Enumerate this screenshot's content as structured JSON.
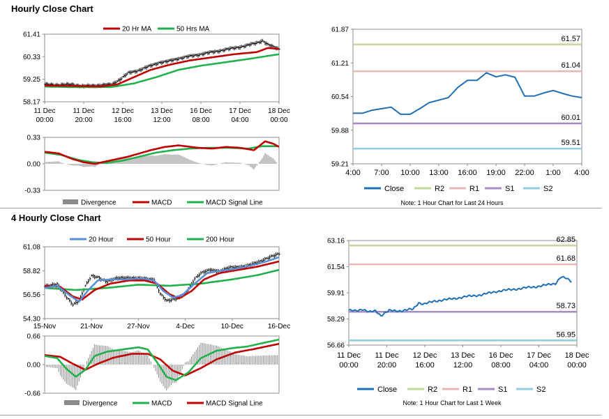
{
  "sections": {
    "hourly_title": "Hourly Close Chart",
    "four_hourly_title": "4 Hourly Close Chart"
  },
  "colors": {
    "ma_red": "#c00000",
    "ma_green": "#22b14c",
    "ma_blue": "#5b8fd4",
    "bar_black": "#000000",
    "divergence_gray": "#8a8a8a",
    "close_blue": "#1f6fb4",
    "r2": "#c3d69b",
    "r1": "#e6b9b8",
    "s1": "#a58dc2",
    "s2": "#93cddd"
  },
  "chart_data": [
    {
      "id": "hourly_price",
      "type": "ohlc",
      "legend": [
        "20 Hr MA",
        "50 Hrs MA"
      ],
      "yticks": [
        "61.41",
        "60.33",
        "59.25",
        "58.17"
      ],
      "ylim": [
        58.17,
        61.41
      ],
      "xticks": [
        [
          "11 Dec",
          "00:00"
        ],
        [
          "11 Dec",
          "20:00"
        ],
        [
          "12 Dec",
          "16:00"
        ],
        [
          "13 Dec",
          "12:00"
        ],
        [
          "16 Dec",
          "08:00"
        ],
        [
          "17 Dec",
          "04:00"
        ],
        [
          "18 Dec",
          "00:00"
        ]
      ],
      "xrange": [
        0,
        168
      ],
      "close_anchors": [
        [
          0,
          59.0
        ],
        [
          10,
          58.98
        ],
        [
          20,
          59.0
        ],
        [
          24,
          58.95
        ],
        [
          28,
          58.92
        ],
        [
          36,
          58.95
        ],
        [
          48,
          59.0
        ],
        [
          54,
          59.25
        ],
        [
          60,
          59.55
        ],
        [
          66,
          59.65
        ],
        [
          72,
          59.8
        ],
        [
          82,
          60.05
        ],
        [
          88,
          60.1
        ],
        [
          96,
          60.25
        ],
        [
          104,
          60.35
        ],
        [
          112,
          60.45
        ],
        [
          120,
          60.55
        ],
        [
          128,
          60.65
        ],
        [
          136,
          60.75
        ],
        [
          144,
          60.85
        ],
        [
          152,
          61.0
        ],
        [
          156,
          61.1
        ],
        [
          160,
          60.9
        ],
        [
          168,
          60.7
        ]
      ],
      "ma20_anchors": [
        [
          0,
          58.95
        ],
        [
          20,
          58.93
        ],
        [
          40,
          58.9
        ],
        [
          52,
          59.0
        ],
        [
          64,
          59.35
        ],
        [
          76,
          59.7
        ],
        [
          90,
          59.95
        ],
        [
          104,
          60.15
        ],
        [
          120,
          60.3
        ],
        [
          136,
          60.45
        ],
        [
          152,
          60.55
        ],
        [
          160,
          60.75
        ],
        [
          168,
          60.7
        ]
      ],
      "ma50_anchors": [
        [
          0,
          58.9
        ],
        [
          24,
          58.87
        ],
        [
          48,
          58.88
        ],
        [
          64,
          59.05
        ],
        [
          80,
          59.35
        ],
        [
          96,
          59.7
        ],
        [
          112,
          59.9
        ],
        [
          128,
          60.05
        ],
        [
          144,
          60.2
        ],
        [
          168,
          60.45
        ]
      ]
    },
    {
      "id": "hourly_macd",
      "type": "macd",
      "legend": [
        "Divergence",
        "MACD",
        "MACD Signal Line"
      ],
      "yticks": [
        "0.33",
        "0.00",
        "-0.33"
      ],
      "ylim": [
        -0.33,
        0.33
      ],
      "xrange": [
        0,
        168
      ],
      "macd_anchors": [
        [
          0,
          0.15
        ],
        [
          10,
          0.13
        ],
        [
          20,
          0.06
        ],
        [
          28,
          0.02
        ],
        [
          36,
          0.0
        ],
        [
          44,
          0.03
        ],
        [
          52,
          0.06
        ],
        [
          60,
          0.09
        ],
        [
          68,
          0.13
        ],
        [
          76,
          0.17
        ],
        [
          86,
          0.21
        ],
        [
          96,
          0.23
        ],
        [
          110,
          0.2
        ],
        [
          120,
          0.19
        ],
        [
          130,
          0.21
        ],
        [
          140,
          0.2
        ],
        [
          150,
          0.17
        ],
        [
          158,
          0.28
        ],
        [
          164,
          0.25
        ],
        [
          168,
          0.21
        ]
      ],
      "signal_anchors": [
        [
          0,
          0.14
        ],
        [
          12,
          0.11
        ],
        [
          24,
          0.05
        ],
        [
          34,
          0.02
        ],
        [
          44,
          0.01
        ],
        [
          56,
          0.04
        ],
        [
          68,
          0.09
        ],
        [
          80,
          0.14
        ],
        [
          92,
          0.17
        ],
        [
          104,
          0.19
        ],
        [
          118,
          0.2
        ],
        [
          132,
          0.2
        ],
        [
          146,
          0.19
        ],
        [
          156,
          0.22
        ],
        [
          168,
          0.22
        ]
      ]
    },
    {
      "id": "hourly_levels",
      "type": "line",
      "legend": [
        "Close",
        "R2",
        "R1",
        "S1",
        "S2"
      ],
      "note": "Note: 1 Hour Chart for Last 24 Hours",
      "yticks": [
        "61.87",
        "61.21",
        "60.54",
        "59.88",
        "59.21"
      ],
      "ylim": [
        59.21,
        61.87
      ],
      "xticks": [
        "4:00",
        "7:00",
        "10:00",
        "13:00",
        "16:00",
        "19:00",
        "22:00",
        "1:00",
        "4:00"
      ],
      "levels": [
        {
          "name": "R2",
          "value": 61.57,
          "label": "61.57"
        },
        {
          "name": "R1",
          "value": 61.04,
          "label": "61.04"
        },
        {
          "name": "S1",
          "value": 60.01,
          "label": "60.01"
        },
        {
          "name": "S2",
          "value": 59.51,
          "label": "59.51"
        }
      ],
      "close": [
        60.21,
        60.21,
        60.27,
        60.3,
        60.33,
        60.19,
        60.19,
        60.3,
        60.42,
        60.47,
        60.52,
        60.72,
        60.86,
        60.86,
        61.01,
        60.93,
        60.97,
        60.92,
        60.55,
        60.55,
        60.61,
        60.66,
        60.6,
        60.55,
        60.52
      ]
    },
    {
      "id": "four_hourly_price",
      "type": "ohlc",
      "legend": [
        "20 Hour",
        "50 Hour",
        "200 Hour"
      ],
      "yticks": [
        "61.08",
        "58.82",
        "56.56",
        "54.30"
      ],
      "ylim": [
        54.3,
        61.08
      ],
      "xticks": [
        "15-Nov",
        "21-Nov",
        "27-Nov",
        "4-Dec",
        "10-Dec",
        "16-Dec"
      ],
      "xrange": [
        0,
        150
      ],
      "close_anchors": [
        [
          0,
          57.3
        ],
        [
          8,
          57.6
        ],
        [
          14,
          56.3
        ],
        [
          18,
          55.6
        ],
        [
          22,
          56.0
        ],
        [
          26,
          57.4
        ],
        [
          30,
          58.3
        ],
        [
          34,
          58.2
        ],
        [
          40,
          57.8
        ],
        [
          46,
          58.1
        ],
        [
          52,
          58.2
        ],
        [
          58,
          58.1
        ],
        [
          64,
          58.1
        ],
        [
          70,
          58.0
        ],
        [
          74,
          56.6
        ],
        [
          78,
          56.0
        ],
        [
          84,
          56.2
        ],
        [
          90,
          56.6
        ],
        [
          96,
          58.1
        ],
        [
          100,
          58.6
        ],
        [
          106,
          58.9
        ],
        [
          112,
          58.8
        ],
        [
          118,
          59.1
        ],
        [
          124,
          59.2
        ],
        [
          130,
          59.3
        ],
        [
          136,
          59.6
        ],
        [
          142,
          60.0
        ],
        [
          150,
          60.4
        ]
      ],
      "ma20_anchors": [
        [
          0,
          57.2
        ],
        [
          8,
          57.4
        ],
        [
          16,
          56.5
        ],
        [
          22,
          55.9
        ],
        [
          28,
          57.0
        ],
        [
          34,
          57.9
        ],
        [
          42,
          58.0
        ],
        [
          52,
          58.0
        ],
        [
          62,
          58.1
        ],
        [
          70,
          57.9
        ],
        [
          76,
          56.9
        ],
        [
          82,
          56.3
        ],
        [
          88,
          56.5
        ],
        [
          96,
          57.6
        ],
        [
          104,
          58.6
        ],
        [
          112,
          58.8
        ],
        [
          122,
          59.0
        ],
        [
          132,
          59.3
        ],
        [
          142,
          59.7
        ],
        [
          150,
          60.1
        ]
      ],
      "ma50_anchors": [
        [
          0,
          57.4
        ],
        [
          10,
          57.3
        ],
        [
          18,
          56.4
        ],
        [
          24,
          56.1
        ],
        [
          32,
          57.0
        ],
        [
          42,
          57.6
        ],
        [
          54,
          57.9
        ],
        [
          64,
          57.9
        ],
        [
          72,
          57.6
        ],
        [
          80,
          56.6
        ],
        [
          86,
          56.2
        ],
        [
          94,
          56.9
        ],
        [
          102,
          58.0
        ],
        [
          112,
          58.6
        ],
        [
          124,
          58.9
        ],
        [
          136,
          59.2
        ],
        [
          150,
          59.7
        ]
      ],
      "ma200_anchors": [
        [
          0,
          57.2
        ],
        [
          20,
          57.0
        ],
        [
          40,
          57.2
        ],
        [
          60,
          57.5
        ],
        [
          80,
          57.4
        ],
        [
          100,
          57.6
        ],
        [
          120,
          58.0
        ],
        [
          136,
          58.4
        ],
        [
          150,
          58.9
        ]
      ]
    },
    {
      "id": "four_hourly_macd",
      "type": "macd",
      "legend": [
        "Divergence",
        "MACD",
        "MACD Signal Line"
      ],
      "yticks": [
        "0.66",
        "0.00",
        "-0.66"
      ],
      "ylim": [
        -0.66,
        0.66
      ],
      "xrange": [
        0,
        150
      ],
      "macd_anchors": [
        [
          0,
          0.2
        ],
        [
          8,
          0.15
        ],
        [
          14,
          -0.1
        ],
        [
          20,
          -0.28
        ],
        [
          26,
          -0.12
        ],
        [
          32,
          0.2
        ],
        [
          40,
          0.3
        ],
        [
          50,
          0.35
        ],
        [
          60,
          0.4
        ],
        [
          66,
          0.35
        ],
        [
          72,
          0.05
        ],
        [
          78,
          -0.28
        ],
        [
          84,
          -0.36
        ],
        [
          92,
          -0.18
        ],
        [
          100,
          0.15
        ],
        [
          110,
          0.32
        ],
        [
          120,
          0.38
        ],
        [
          130,
          0.42
        ],
        [
          140,
          0.5
        ],
        [
          150,
          0.58
        ]
      ],
      "signal_anchors": [
        [
          0,
          0.22
        ],
        [
          10,
          0.18
        ],
        [
          18,
          0.02
        ],
        [
          26,
          -0.12
        ],
        [
          34,
          0.02
        ],
        [
          44,
          0.16
        ],
        [
          56,
          0.25
        ],
        [
          66,
          0.25
        ],
        [
          74,
          0.12
        ],
        [
          82,
          -0.14
        ],
        [
          90,
          -0.25
        ],
        [
          100,
          -0.08
        ],
        [
          110,
          0.12
        ],
        [
          122,
          0.28
        ],
        [
          134,
          0.36
        ],
        [
          150,
          0.48
        ]
      ]
    },
    {
      "id": "four_hourly_levels",
      "type": "line",
      "legend": [
        "Close",
        "R2",
        "R1",
        "S1",
        "S2"
      ],
      "note": "Note: 1 Hour Chart for Last 1 Week",
      "yticks": [
        "63.16",
        "61.54",
        "59.91",
        "58.29",
        "56.66"
      ],
      "ylim": [
        56.66,
        63.16
      ],
      "xticks": [
        [
          "11 Dec",
          "00:00"
        ],
        [
          "11 Dec",
          "20:00"
        ],
        [
          "12 Dec",
          "16:00"
        ],
        [
          "13 Dec",
          "12:00"
        ],
        [
          "16 Dec",
          "08:00"
        ],
        [
          "17 Dec",
          "04:00"
        ],
        [
          "18 Dec",
          "00:00"
        ]
      ],
      "xrange": [
        0,
        170
      ],
      "levels": [
        {
          "name": "R2",
          "value": 62.85,
          "label": "62.85"
        },
        {
          "name": "R1",
          "value": 61.68,
          "label": "61.68"
        },
        {
          "name": "S1",
          "value": 58.73,
          "label": "58.73"
        },
        {
          "name": "S2",
          "value": 56.95,
          "label": "56.95"
        }
      ],
      "close_anchors": [
        [
          0,
          58.8
        ],
        [
          5,
          58.8
        ],
        [
          10,
          58.9
        ],
        [
          15,
          58.7
        ],
        [
          20,
          58.8
        ],
        [
          24,
          58.5
        ],
        [
          30,
          58.8
        ],
        [
          40,
          58.8
        ],
        [
          48,
          58.9
        ],
        [
          52,
          59.3
        ],
        [
          56,
          59.2
        ],
        [
          64,
          59.4
        ],
        [
          74,
          59.5
        ],
        [
          82,
          59.6
        ],
        [
          90,
          59.7
        ],
        [
          100,
          59.8
        ],
        [
          110,
          60.0
        ],
        [
          120,
          60.1
        ],
        [
          130,
          60.2
        ],
        [
          140,
          60.3
        ],
        [
          148,
          60.4
        ],
        [
          154,
          60.5
        ],
        [
          158,
          60.9
        ],
        [
          162,
          60.8
        ],
        [
          166,
          60.6
        ],
        [
          170,
          60.55
        ]
      ]
    }
  ]
}
